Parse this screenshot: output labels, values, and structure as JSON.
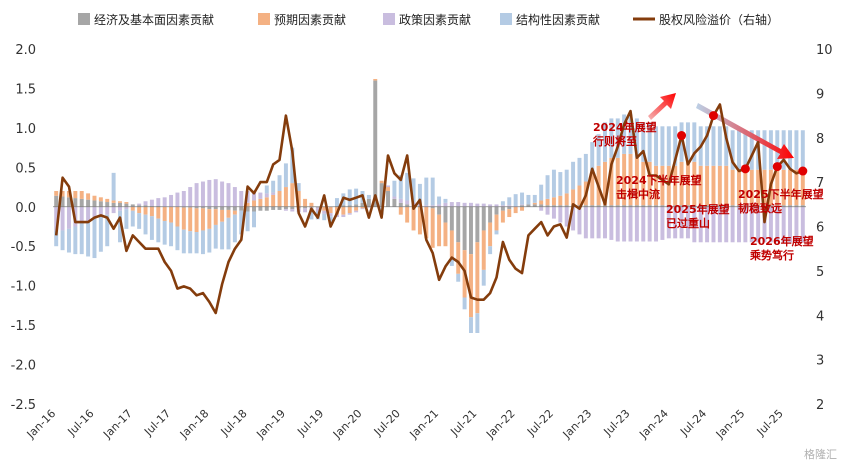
{
  "chart_data": {
    "type": "bar",
    "title": "",
    "legend": [
      "经济及基本面因素贡献",
      "预期因素贡献",
      "政策因素贡献",
      "结构性因素贡献",
      "股权风险溢价（右轴）"
    ],
    "legend_position": "top",
    "colors": {
      "econ": "#a6a6a6",
      "expect": "#f4b183",
      "policy": "#c9bddf",
      "struct": "#b4cbe4",
      "erp": "#843c0c",
      "marker": "#e00000"
    },
    "y_left": {
      "min": -2.5,
      "max": 2.0,
      "ticks": [
        "2.0",
        "1.5",
        "1.0",
        "0.5",
        "0.0",
        "-0.5",
        "-1.0",
        "-1.5",
        "-2.0",
        "-2.5"
      ]
    },
    "y_right": {
      "min": 2,
      "max": 10,
      "ticks": [
        "10",
        "9",
        "8",
        "7",
        "6",
        "5",
        "4",
        "3",
        "2"
      ]
    },
    "x_ticks": [
      "Jan-16",
      "Jul-16",
      "Jan-17",
      "Jul-17",
      "Jan-18",
      "Jul-18",
      "Jan-19",
      "Jul-19",
      "Jan-20",
      "Jul-20",
      "Jan-21",
      "Jul-21",
      "Jan-22",
      "Jul-22",
      "Jan-23",
      "Jul-23",
      "Jan-24",
      "Jul-24",
      "Jan-25",
      "Jul-25"
    ],
    "n_months": 118,
    "series": [
      {
        "name": "股权风险溢价（右轴）",
        "axis": "right",
        "key": "erp",
        "values": [
          5.8,
          7.1,
          6.9,
          6.1,
          6.1,
          6.1,
          6.2,
          6.25,
          6.2,
          5.95,
          6.2,
          5.45,
          5.8,
          5.65,
          5.5,
          5.5,
          5.5,
          5.2,
          5.0,
          4.6,
          4.65,
          4.6,
          4.45,
          4.5,
          4.3,
          4.05,
          4.7,
          5.2,
          5.5,
          5.7,
          6.9,
          6.75,
          7.0,
          7.0,
          7.4,
          7.5,
          8.5,
          7.7,
          6.3,
          6.0,
          6.4,
          6.2,
          6.7,
          6.0,
          6.3,
          6.65,
          6.6,
          6.65,
          6.7,
          6.2,
          6.7,
          6.2,
          7.6,
          7.2,
          7.05,
          7.6,
          6.4,
          6.6,
          5.7,
          5.4,
          4.8,
          5.1,
          5.3,
          5.2,
          5.0,
          4.4,
          4.35,
          4.35,
          4.5,
          4.85,
          5.65,
          5.25,
          5.05,
          4.95,
          5.8,
          5.95,
          6.1,
          5.8,
          6.0,
          6.05,
          5.75,
          6.5,
          6.4,
          6.7,
          7.3,
          6.9,
          6.5,
          7.4,
          7.8,
          8.3,
          8.6,
          7.55,
          7.7,
          7.15,
          7.15,
          7.05,
          6.95,
          7.5,
          8.05,
          7.4,
          7.65,
          7.8,
          8.05,
          8.5,
          8.75,
          8.0,
          7.45,
          7.25,
          7.3,
          7.6,
          7.9,
          6.1,
          6.95,
          7.35,
          7.5,
          7.3,
          7.2,
          7.25
        ]
      },
      {
        "name": "经济及基本面因素贡献",
        "key": "econ",
        "values": [
          0.14,
          0.13,
          0.12,
          0.11,
          0.1,
          0.09,
          0.08,
          0.07,
          0.06,
          0.05,
          0.05,
          0.04,
          0.03,
          0.02,
          0.02,
          0.01,
          0.01,
          0.0,
          0.0,
          0.0,
          -0.01,
          -0.01,
          -0.02,
          -0.02,
          -0.03,
          -0.03,
          -0.04,
          -0.04,
          -0.05,
          -0.05,
          -0.06,
          -0.06,
          -0.05,
          -0.05,
          -0.04,
          -0.04,
          -0.03,
          -0.03,
          -0.02,
          -0.02,
          -0.01,
          -0.01,
          0.0,
          0.0,
          0.01,
          0.02,
          0.02,
          0.03,
          0.05,
          0.1,
          1.6,
          0.3,
          0.2,
          0.1,
          0.05,
          0.03,
          0.02,
          0.01,
          0.0,
          -0.02,
          -0.1,
          -0.2,
          -0.3,
          -0.45,
          -0.55,
          -0.6,
          -0.45,
          -0.3,
          -0.2,
          -0.1,
          -0.05,
          -0.03,
          0.0,
          0.02,
          0.03,
          0.03,
          0.03,
          0.02,
          0.02,
          0.02,
          0.02,
          0.02,
          0.02,
          0.02,
          0.02,
          0.02,
          0.02,
          0.02,
          0.02,
          0.02,
          0.02,
          0.02,
          0.02,
          0.02,
          0.02,
          0.02,
          0.02,
          0.02,
          0.02,
          0.02,
          0.02,
          0.02,
          0.02,
          0.02,
          0.02,
          0.02,
          0.02,
          0.02,
          0.02,
          0.02,
          0.02,
          0.02,
          0.02,
          0.02,
          0.02,
          0.02,
          0.02,
          0.02
        ]
      },
      {
        "name": "预期因素贡献",
        "key": "expect",
        "values": [
          0.06,
          0.07,
          0.08,
          0.09,
          0.1,
          0.08,
          0.06,
          0.05,
          0.04,
          0.03,
          0.02,
          0.02,
          -0.05,
          -0.08,
          -0.1,
          -0.12,
          -0.15,
          -0.18,
          -0.2,
          -0.25,
          -0.28,
          -0.3,
          -0.3,
          -0.28,
          -0.25,
          -0.2,
          -0.15,
          -0.1,
          -0.05,
          0.0,
          0.05,
          0.08,
          0.1,
          0.12,
          0.15,
          0.2,
          0.25,
          0.3,
          0.2,
          0.1,
          0.05,
          0.0,
          -0.05,
          -0.08,
          -0.1,
          -0.1,
          -0.08,
          -0.05,
          -0.02,
          0.0,
          0.02,
          0.03,
          0.05,
          0.0,
          -0.1,
          -0.2,
          -0.3,
          -0.35,
          -0.4,
          -0.5,
          -0.4,
          -0.3,
          -0.35,
          -0.4,
          -0.6,
          -0.8,
          -0.9,
          -0.5,
          -0.3,
          -0.2,
          -0.15,
          -0.1,
          -0.08,
          -0.05,
          0.0,
          0.02,
          0.05,
          0.08,
          0.1,
          0.12,
          0.15,
          0.2,
          0.25,
          0.3,
          0.4,
          0.5,
          0.55,
          0.6,
          0.6,
          0.65,
          0.65,
          0.6,
          0.55,
          0.55,
          0.5,
          0.5,
          0.5,
          0.5,
          0.55,
          0.55,
          0.55,
          0.5,
          0.5,
          0.5,
          0.5,
          0.5,
          0.45,
          0.45,
          0.45,
          0.45,
          0.45,
          0.45,
          0.45,
          0.45,
          0.45,
          0.45,
          0.45,
          0.45
        ]
      },
      {
        "name": "政策因素贡献",
        "key": "policy",
        "values": [
          -0.3,
          -0.3,
          -0.28,
          -0.25,
          -0.2,
          -0.18,
          -0.15,
          -0.12,
          -0.1,
          -0.08,
          -0.05,
          -0.03,
          0.0,
          0.02,
          0.05,
          0.08,
          0.1,
          0.12,
          0.15,
          0.18,
          0.2,
          0.25,
          0.3,
          0.32,
          0.34,
          0.35,
          0.32,
          0.3,
          0.25,
          0.2,
          0.15,
          0.1,
          0.08,
          0.05,
          0.03,
          0.0,
          -0.02,
          -0.03,
          -0.05,
          -0.05,
          -0.05,
          -0.05,
          -0.04,
          -0.04,
          -0.03,
          -0.03,
          -0.02,
          -0.02,
          -0.01,
          -0.01,
          0.0,
          0.0,
          0.02,
          0.03,
          0.05,
          0.05,
          0.04,
          0.03,
          0.02,
          0.02,
          0.03,
          0.05,
          0.06,
          0.06,
          0.05,
          0.05,
          0.04,
          0.04,
          0.03,
          0.03,
          0.02,
          0.02,
          0.01,
          0.01,
          0.0,
          0.0,
          -0.05,
          -0.1,
          -0.15,
          -0.2,
          -0.25,
          -0.3,
          -0.35,
          -0.4,
          -0.4,
          -0.4,
          -0.4,
          -0.42,
          -0.44,
          -0.44,
          -0.44,
          -0.44,
          -0.44,
          -0.44,
          -0.44,
          -0.42,
          -0.4,
          -0.4,
          -0.4,
          -0.4,
          -0.45,
          -0.45,
          -0.45,
          -0.45,
          -0.45,
          -0.45,
          -0.45,
          -0.45,
          -0.45,
          -0.45,
          -0.45,
          -0.45,
          -0.45,
          -0.45,
          -0.45,
          -0.45,
          -0.45,
          -0.45
        ]
      },
      {
        "name": "结构性因素贡献",
        "key": "struct",
        "values": [
          -0.2,
          -0.25,
          -0.3,
          -0.35,
          -0.4,
          -0.45,
          -0.5,
          -0.45,
          -0.4,
          0.35,
          -0.4,
          -0.25,
          -0.2,
          -0.2,
          -0.25,
          -0.3,
          -0.3,
          -0.3,
          -0.3,
          -0.3,
          -0.3,
          -0.28,
          -0.27,
          -0.3,
          -0.3,
          -0.3,
          -0.35,
          -0.4,
          -0.35,
          -0.3,
          -0.25,
          -0.2,
          0.0,
          0.1,
          0.15,
          0.2,
          0.3,
          0.45,
          0.1,
          0.0,
          -0.1,
          -0.1,
          -0.08,
          -0.08,
          0.1,
          0.15,
          0.2,
          0.2,
          0.15,
          0.05,
          0.0,
          -0.1,
          0.0,
          0.2,
          0.3,
          0.35,
          0.3,
          0.25,
          0.35,
          0.35,
          0.1,
          0.05,
          -0.1,
          -0.1,
          -0.15,
          -0.2,
          -0.25,
          -0.2,
          -0.1,
          -0.05,
          0.05,
          0.1,
          0.15,
          0.15,
          0.12,
          0.1,
          0.2,
          0.3,
          0.35,
          0.3,
          0.3,
          0.35,
          0.35,
          0.35,
          0.4,
          0.4,
          0.5,
          0.5,
          0.5,
          0.5,
          0.5,
          0.5,
          0.5,
          0.5,
          0.5,
          0.5,
          0.5,
          0.5,
          0.5,
          0.5,
          0.5,
          0.5,
          0.5,
          0.5,
          0.5,
          0.5,
          0.5,
          0.5,
          0.5,
          0.5,
          0.5,
          0.5,
          0.5,
          0.5,
          0.5,
          0.5,
          0.5,
          0.5
        ]
      }
    ],
    "annotations": [
      {
        "lines": [
          "2024年展望",
          "行则将至"
        ],
        "month": 98
      },
      {
        "lines": [
          "2024下半年展望",
          "击楫中流"
        ],
        "month": 103
      },
      {
        "lines": [
          "2025年展望",
          "已过重山"
        ],
        "month": 108
      },
      {
        "lines": [
          "2025下半年展望",
          "韧稳致远"
        ],
        "month": 113
      },
      {
        "lines": [
          "2026年展望",
          "乘势笃行"
        ],
        "month": 117
      }
    ],
    "watermark": "格隆汇"
  }
}
